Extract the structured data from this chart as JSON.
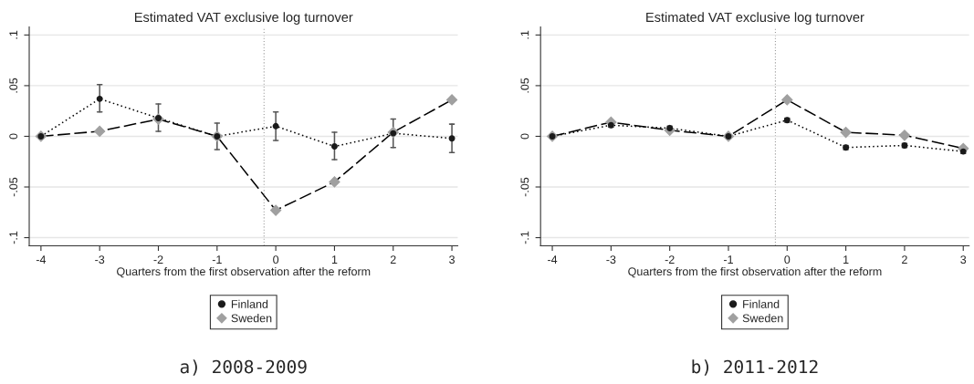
{
  "chart_data": [
    {
      "type": "line",
      "title": "Estimated VAT exclusive log turnover",
      "xlabel": "Quarters from the first observation after the reform",
      "x": [
        -4,
        -3,
        -2,
        -1,
        0,
        1,
        2,
        3
      ],
      "xlim": [
        -4.2,
        3.1
      ],
      "xticks": [
        -4,
        -3,
        -2,
        -1,
        0,
        1,
        2,
        3
      ],
      "ylim": [
        -0.108,
        0.108
      ],
      "yticks": [
        {
          "value": -0.1,
          "label": "-.1"
        },
        {
          "value": -0.05,
          "label": "-.05"
        },
        {
          "value": 0,
          "label": "0"
        },
        {
          "value": 0.05,
          "label": ".05"
        },
        {
          "value": 0.1,
          "label": ".1"
        }
      ],
      "grid": "y",
      "legend": "bottom",
      "ref_lines": [
        {
          "axis": "x",
          "value": -0.2,
          "color": "#999999",
          "line_style": "dotted"
        }
      ],
      "annotations": [
        "a) 2008-2009"
      ],
      "series": [
        {
          "name": "Finland",
          "color": "#1a1a1a",
          "marker": "circle",
          "line_style": "dotted",
          "values": [
            0,
            0.037,
            0.018,
            0,
            0.01,
            -0.01,
            0.003,
            -0.002
          ],
          "errors": [
            null,
            [
              0.024,
              0.051
            ],
            [
              0.005,
              0.032
            ],
            [
              -0.013,
              0.013
            ],
            [
              -0.004,
              0.024
            ],
            [
              -0.023,
              0.004
            ],
            [
              -0.011,
              0.017
            ],
            [
              -0.016,
              0.012
            ]
          ]
        },
        {
          "name": "Sweden",
          "color": "#a0a0a0",
          "marker": "diamond",
          "line_style": "dashed",
          "values": [
            0,
            0.005,
            0.017,
            0,
            -0.073,
            -0.045,
            0.004,
            0.036
          ]
        }
      ]
    },
    {
      "type": "line",
      "title": "Estimated VAT exclusive log turnover",
      "xlabel": "Quarters from the first observation after the reform",
      "x": [
        -4,
        -3,
        -2,
        -1,
        0,
        1,
        2,
        3
      ],
      "xlim": [
        -4.2,
        3.1
      ],
      "xticks": [
        -4,
        -3,
        -2,
        -1,
        0,
        1,
        2,
        3
      ],
      "ylim": [
        -0.108,
        0.108
      ],
      "yticks": [
        {
          "value": -0.1,
          "label": "-.1"
        },
        {
          "value": -0.05,
          "label": "-.05"
        },
        {
          "value": 0,
          "label": "0"
        },
        {
          "value": 0.05,
          "label": ".05"
        },
        {
          "value": 0.1,
          "label": ".1"
        }
      ],
      "grid": "y",
      "legend": "bottom",
      "ref_lines": [
        {
          "axis": "x",
          "value": -0.2,
          "color": "#999999",
          "line_style": "dotted"
        }
      ],
      "annotations": [
        "b) 2011-2012"
      ],
      "series": [
        {
          "name": "Finland",
          "color": "#1a1a1a",
          "marker": "circle",
          "line_style": "dotted",
          "values": [
            0,
            0.011,
            0.008,
            0,
            0.016,
            -0.011,
            -0.009,
            -0.015
          ],
          "errors": [
            null,
            [
              0.009,
              0.013
            ],
            [
              0.006,
              0.01
            ],
            [
              -0.002,
              0.002
            ],
            [
              0.014,
              0.018
            ],
            [
              -0.013,
              -0.009
            ],
            [
              -0.011,
              -0.007
            ],
            [
              -0.017,
              -0.013
            ]
          ]
        },
        {
          "name": "Sweden",
          "color": "#a0a0a0",
          "marker": "diamond",
          "line_style": "dashed",
          "values": [
            0,
            0.014,
            0.006,
            0,
            0.036,
            0.004,
            0.001,
            -0.012
          ]
        }
      ]
    }
  ]
}
